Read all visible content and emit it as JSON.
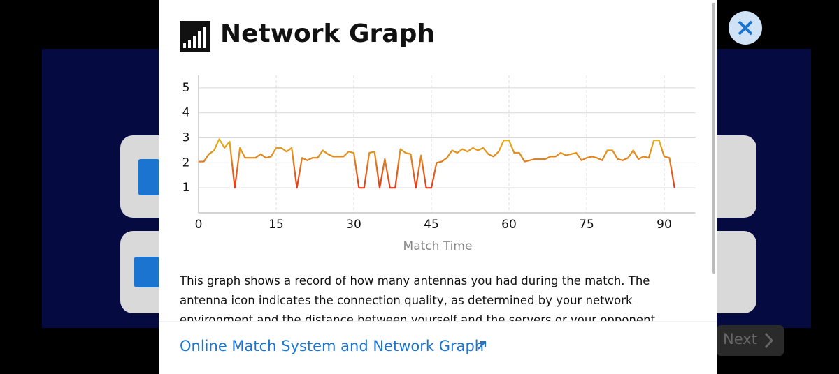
{
  "dialog": {
    "title": "Network Graph",
    "body": "This graph shows a record of how many antennas you had during the match. The antenna icon indicates the connection quality, as determined by your network environment and the distance between yourself and the servers or your opponent.",
    "link": "Online Match System and Network Graph",
    "next": "Next"
  },
  "chart_data": {
    "type": "line",
    "x_label": "Match Time",
    "x": [
      0,
      1,
      2,
      3,
      4,
      5,
      6,
      7,
      8,
      9,
      10,
      11,
      12,
      13,
      14,
      15,
      16,
      17,
      18,
      19,
      20,
      21,
      22,
      23,
      24,
      25,
      26,
      27,
      28,
      29,
      30,
      31,
      32,
      33,
      34,
      35,
      36,
      37,
      38,
      39,
      40,
      41,
      42,
      43,
      44,
      45,
      46,
      47,
      48,
      49,
      50,
      51,
      52,
      53,
      54,
      55,
      56,
      57,
      58,
      59,
      60,
      61,
      62,
      63,
      64,
      65,
      66,
      67,
      68,
      69,
      70,
      71,
      72,
      73,
      74,
      75,
      76,
      77,
      78,
      79,
      80,
      81,
      82,
      83,
      84,
      85,
      86,
      87,
      88,
      89,
      90,
      91,
      92
    ],
    "values": [
      2.05,
      2.05,
      2.35,
      2.5,
      2.95,
      2.6,
      2.85,
      1.0,
      2.6,
      2.2,
      2.2,
      2.2,
      2.35,
      2.2,
      2.25,
      2.6,
      2.6,
      2.45,
      2.6,
      1.0,
      2.2,
      2.1,
      2.2,
      2.2,
      2.5,
      2.35,
      2.25,
      2.25,
      2.25,
      2.45,
      2.4,
      1.0,
      1.0,
      2.4,
      2.45,
      1.0,
      2.15,
      1.0,
      1.0,
      2.55,
      2.4,
      2.35,
      1.0,
      2.3,
      1.0,
      1.0,
      2.0,
      2.05,
      2.2,
      2.5,
      2.4,
      2.55,
      2.45,
      2.6,
      2.5,
      2.6,
      2.35,
      2.25,
      2.45,
      2.9,
      2.9,
      2.4,
      2.4,
      2.05,
      2.1,
      2.15,
      2.15,
      2.15,
      2.25,
      2.25,
      2.4,
      2.3,
      2.35,
      2.4,
      2.1,
      2.2,
      2.25,
      2.2,
      2.1,
      2.5,
      2.5,
      2.15,
      2.1,
      2.2,
      2.5,
      2.15,
      2.25,
      2.2,
      2.9,
      2.9,
      2.25,
      2.2,
      1.0
    ],
    "xlim": [
      0,
      96
    ],
    "ylim": [
      0,
      5.5
    ],
    "xticks": [
      0,
      15,
      30,
      45,
      60,
      75,
      90
    ],
    "yticks": [
      1,
      2,
      3,
      4,
      5
    ],
    "grid": true,
    "gradient": [
      "#e5391a",
      "#e3b61c"
    ]
  }
}
